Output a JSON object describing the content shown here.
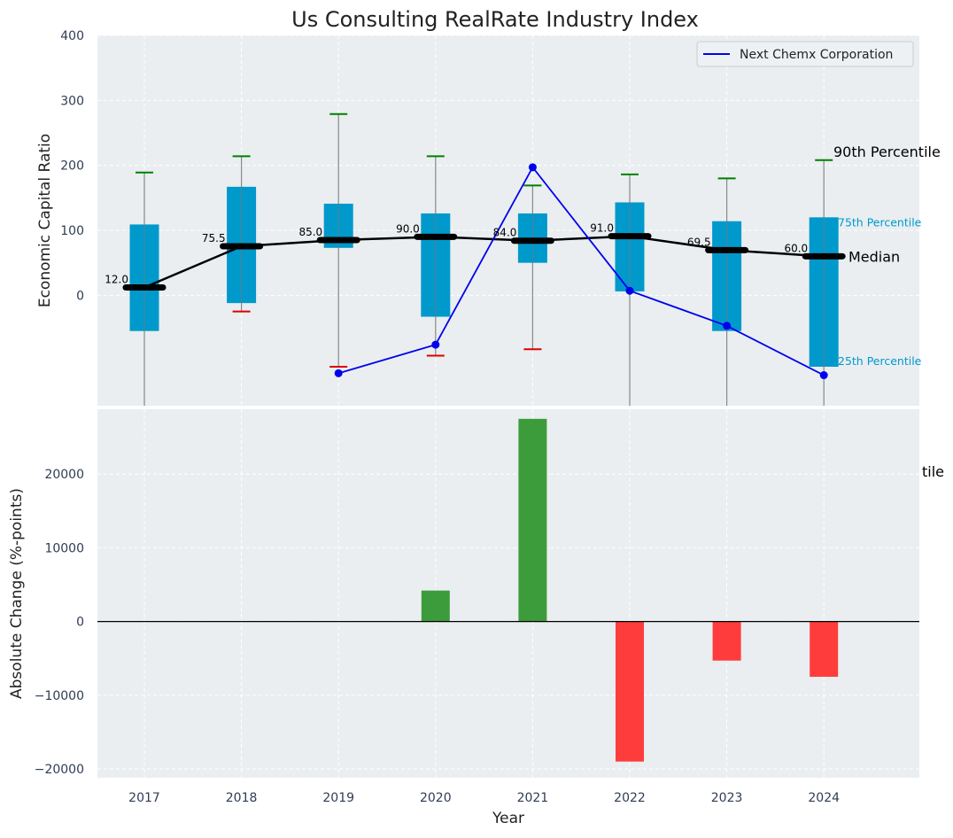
{
  "chart_data": [
    {
      "type": "box-range+line",
      "title": "Us Consulting RealRate Industry Index",
      "ylabel": "Economic Capital Ratio",
      "yticks": [
        0,
        100,
        200,
        300,
        400
      ],
      "ylim": [
        -170,
        400
      ],
      "grid": true,
      "categories": [
        "2017",
        "2018",
        "2019",
        "2020",
        "2021",
        "2022",
        "2023",
        "2024"
      ],
      "p25": [
        -55,
        -12,
        73,
        -33,
        50,
        6,
        -55,
        -110
      ],
      "p75": [
        109,
        167,
        141,
        126,
        126,
        143,
        114,
        120
      ],
      "p10": [
        null,
        -25,
        -110,
        -93,
        -83,
        null,
        null,
        null
      ],
      "p90": [
        189,
        214,
        279,
        214,
        169,
        186,
        180,
        208
      ],
      "median": [
        12.0,
        75.5,
        85.0,
        90.0,
        84.0,
        91.0,
        69.5,
        60.0
      ],
      "median_labels": [
        "12.0",
        "75.5",
        "85.0",
        "90.0",
        "84.0",
        "91.0",
        "69.5",
        "60.0"
      ],
      "company": {
        "name": "Next Chemx Corporation",
        "values": [
          null,
          null,
          -120,
          -76,
          197,
          7,
          -47,
          -123
        ]
      },
      "annotations": {
        "p90": "90th Percentile",
        "p75": "75th Percentile",
        "median": "Median",
        "p25": "25th Percentile"
      },
      "legend": {
        "entry": "Next Chemx Corporation",
        "position": "top-right"
      },
      "colors": {
        "box": "#0099cc",
        "median": "#000000",
        "company": "#0000ee",
        "p90_cap": "#008000",
        "p10_cap": "#dd0000",
        "bg": "#eaeef0"
      }
    },
    {
      "type": "bar",
      "xlabel": "Year",
      "ylabel": "Absolute Change (%-points)",
      "categories": [
        "2017",
        "2018",
        "2019",
        "2020",
        "2021",
        "2022",
        "2023",
        "2024"
      ],
      "values": [
        0,
        0,
        0,
        4200,
        27500,
        -19000,
        -5300,
        -7500
      ],
      "yticks": [
        -20000,
        -10000,
        0,
        10000,
        20000
      ],
      "ytick_labels": [
        "−20000",
        "−10000",
        "0",
        "10000",
        "20000"
      ],
      "ylim": [
        -21200,
        28800
      ],
      "clipped_label": "tile",
      "grid": true,
      "colors": {
        "positive": "#3c9c3c",
        "negative": "#ff3c3c",
        "bg": "#eaeef0"
      }
    }
  ]
}
